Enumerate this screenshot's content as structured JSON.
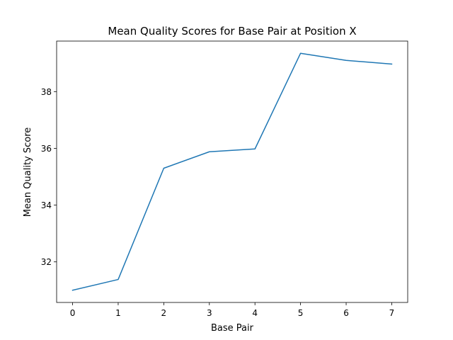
{
  "chart_data": {
    "type": "line",
    "title": "Mean Quality Scores for Base Pair at Position X",
    "xlabel": "Base Pair",
    "ylabel": "Mean Quality Score",
    "x": [
      0,
      1,
      2,
      3,
      4,
      5,
      6,
      7
    ],
    "series": [
      {
        "values": [
          31.0,
          31.38,
          35.3,
          35.88,
          35.98,
          39.35,
          39.1,
          38.97
        ],
        "color": "#1f77b4"
      }
    ],
    "xlim": [
      -0.35,
      7.35
    ],
    "ylim": [
      30.57,
      39.78
    ],
    "x_ticks": [
      0,
      1,
      2,
      3,
      4,
      5,
      6,
      7
    ],
    "x_tick_labels": [
      "0",
      "1",
      "2",
      "3",
      "4",
      "5",
      "6",
      "7"
    ],
    "y_ticks": [
      32,
      34,
      36,
      38
    ],
    "y_tick_labels": [
      "32",
      "34",
      "36",
      "38"
    ],
    "grid": false,
    "legend": "none"
  }
}
